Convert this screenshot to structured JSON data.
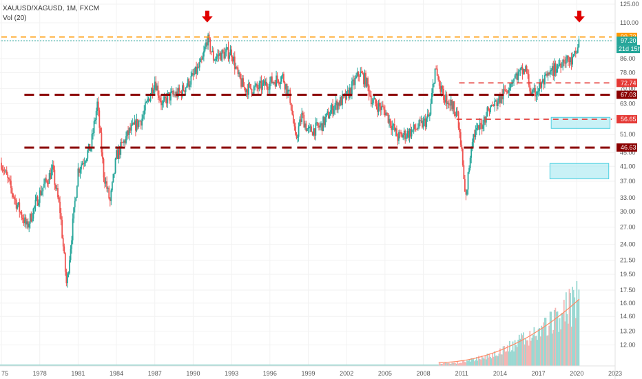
{
  "header": {
    "symbol": "XAUUSD/XAGUSD, 1M, FXCM",
    "volume_label": "Vol (20)"
  },
  "colors": {
    "up": "#26a69a",
    "down": "#ef5350",
    "support_dark": "#8b0000",
    "resistance_red": "#e53935",
    "current_orange": "#ff9800",
    "highlight_box": "#b2ebf2",
    "arrow": "#e00000"
  },
  "chart_data": {
    "type": "candlestick",
    "title": "XAUUSD/XAGUSD, 1M, FXCM",
    "y_scale": "log",
    "ylim": [
      11,
      125
    ],
    "xlim": [
      1975,
      2023
    ],
    "x_ticks": [
      "75",
      "1978",
      "1981",
      "1984",
      "1987",
      "1990",
      "1993",
      "1996",
      "1999",
      "2002",
      "2005",
      "2008",
      "2011",
      "2014",
      "2017",
      "2020",
      "2023"
    ],
    "y_ticks": [
      "125.00",
      "110.00",
      "97.20",
      "86.00",
      "78.00",
      "70.00",
      "63.00",
      "57.00",
      "51.00",
      "45.00",
      "41.00",
      "37.00",
      "33.00",
      "30.00",
      "27.00",
      "24.00",
      "21.50",
      "19.50",
      "17.50",
      "16.00",
      "14.60",
      "13.20",
      "12.00"
    ],
    "price_path": [
      {
        "x": 1975.0,
        "y": 42
      },
      {
        "x": 1976.0,
        "y": 33
      },
      {
        "x": 1977.0,
        "y": 27
      },
      {
        "x": 1978.0,
        "y": 34
      },
      {
        "x": 1979.0,
        "y": 40
      },
      {
        "x": 1979.6,
        "y": 30
      },
      {
        "x": 1980.1,
        "y": 18
      },
      {
        "x": 1980.6,
        "y": 28
      },
      {
        "x": 1981.0,
        "y": 40
      },
      {
        "x": 1982.0,
        "y": 47
      },
      {
        "x": 1982.5,
        "y": 63
      },
      {
        "x": 1983.0,
        "y": 39
      },
      {
        "x": 1983.5,
        "y": 32
      },
      {
        "x": 1984.0,
        "y": 44
      },
      {
        "x": 1985.0,
        "y": 52
      },
      {
        "x": 1986.0,
        "y": 57
      },
      {
        "x": 1987.0,
        "y": 74
      },
      {
        "x": 1987.6,
        "y": 62
      },
      {
        "x": 1988.0,
        "y": 66
      },
      {
        "x": 1989.0,
        "y": 68
      },
      {
        "x": 1990.0,
        "y": 76
      },
      {
        "x": 1990.7,
        "y": 84
      },
      {
        "x": 1991.1,
        "y": 99
      },
      {
        "x": 1991.6,
        "y": 86
      },
      {
        "x": 1992.0,
        "y": 88
      },
      {
        "x": 1993.0,
        "y": 90
      },
      {
        "x": 1993.5,
        "y": 76
      },
      {
        "x": 1994.0,
        "y": 70
      },
      {
        "x": 1995.0,
        "y": 70
      },
      {
        "x": 1996.0,
        "y": 73
      },
      {
        "x": 1997.0,
        "y": 76
      },
      {
        "x": 1997.6,
        "y": 65
      },
      {
        "x": 1998.0,
        "y": 49
      },
      {
        "x": 1998.5,
        "y": 58
      },
      {
        "x": 1999.0,
        "y": 52
      },
      {
        "x": 2000.0,
        "y": 54
      },
      {
        "x": 2001.0,
        "y": 62
      },
      {
        "x": 2002.0,
        "y": 66
      },
      {
        "x": 2003.0,
        "y": 78
      },
      {
        "x": 2003.5,
        "y": 74
      },
      {
        "x": 2004.0,
        "y": 64
      },
      {
        "x": 2005.0,
        "y": 60
      },
      {
        "x": 2006.0,
        "y": 50
      },
      {
        "x": 2007.0,
        "y": 52
      },
      {
        "x": 2008.0,
        "y": 55
      },
      {
        "x": 2008.5,
        "y": 58
      },
      {
        "x": 2008.9,
        "y": 80
      },
      {
        "x": 2009.5,
        "y": 67
      },
      {
        "x": 2010.0,
        "y": 64
      },
      {
        "x": 2010.6,
        "y": 60
      },
      {
        "x": 2011.0,
        "y": 45
      },
      {
        "x": 2011.3,
        "y": 32
      },
      {
        "x": 2011.8,
        "y": 50
      },
      {
        "x": 2012.5,
        "y": 54
      },
      {
        "x": 2013.0,
        "y": 60
      },
      {
        "x": 2014.0,
        "y": 65
      },
      {
        "x": 2015.0,
        "y": 75
      },
      {
        "x": 2016.0,
        "y": 80
      },
      {
        "x": 2016.5,
        "y": 66
      },
      {
        "x": 2017.0,
        "y": 70
      },
      {
        "x": 2018.0,
        "y": 78
      },
      {
        "x": 2019.0,
        "y": 86
      },
      {
        "x": 2019.6,
        "y": 84
      },
      {
        "x": 2020.0,
        "y": 90
      },
      {
        "x": 2020.2,
        "y": 99.7
      }
    ],
    "volume_start_year": 2009.2,
    "horizontal_levels": [
      {
        "price": 99.72,
        "label": "99.72",
        "style": "dashed",
        "color": "#ff9800",
        "x_start": 1975
      },
      {
        "price": 97.2,
        "label": "97.20",
        "style": "dotted",
        "color": "#26a69a",
        "x_start": 1975
      },
      {
        "price": 72.74,
        "label": "72.74",
        "style": "dashed",
        "color": "#e53935",
        "x_start": 2010.8
      },
      {
        "price": 67.03,
        "label": "67.03",
        "style": "dashed",
        "color": "#8b0000",
        "x_start": 1976.8
      },
      {
        "price": 56.65,
        "label": "56.65",
        "style": "dashed",
        "color": "#e53935",
        "x_start": 2010.6
      },
      {
        "price": 46.63,
        "label": "46.63",
        "style": "dashed",
        "color": "#8b0000",
        "x_start": 1976.8
      }
    ],
    "countdown": "21d 15h",
    "highlight_boxes": [
      {
        "x0": 2018.0,
        "x1": 2022.6,
        "y0": 53.2,
        "y1": 57.4
      },
      {
        "x0": 2017.9,
        "x1": 2022.5,
        "y0": 37.6,
        "y1": 41.8
      }
    ],
    "markers": [
      {
        "type": "down-arrow",
        "x": 1991.1,
        "y": 115
      },
      {
        "type": "down-arrow",
        "x": 2020.2,
        "y": 115
      }
    ]
  }
}
